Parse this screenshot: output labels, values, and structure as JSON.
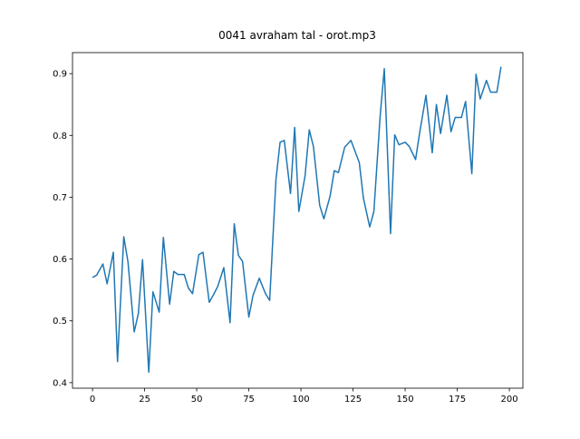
{
  "chart_data": {
    "type": "line",
    "title": "0041 avraham tal - orot.mp3",
    "x": [
      0,
      2,
      5,
      7,
      10,
      12,
      15,
      17,
      20,
      22,
      24,
      27,
      29,
      32,
      34,
      37,
      39,
      41,
      44,
      46,
      48,
      51,
      53,
      56,
      58,
      60,
      63,
      66,
      68,
      70,
      72,
      75,
      77,
      80,
      83,
      85,
      88,
      90,
      92,
      95,
      97,
      99,
      102,
      104,
      106,
      109,
      111,
      114,
      116,
      118,
      121,
      124,
      126,
      128,
      130,
      133,
      135,
      138,
      140,
      143,
      145,
      147,
      150,
      152,
      155,
      157,
      160,
      163,
      165,
      167,
      170,
      172,
      174,
      177,
      179,
      182,
      184,
      186,
      189,
      191,
      194,
      196
    ],
    "series": [
      {
        "color": "#1f77b4",
        "values": [
          0.57,
          0.574,
          0.592,
          0.56,
          0.611,
          0.434,
          0.636,
          0.596,
          0.482,
          0.512,
          0.599,
          0.417,
          0.547,
          0.514,
          0.635,
          0.527,
          0.58,
          0.575,
          0.575,
          0.553,
          0.544,
          0.607,
          0.611,
          0.53,
          0.542,
          0.555,
          0.586,
          0.497,
          0.657,
          0.606,
          0.596,
          0.506,
          0.541,
          0.569,
          0.544,
          0.533,
          0.728,
          0.789,
          0.792,
          0.706,
          0.813,
          0.677,
          0.735,
          0.809,
          0.782,
          0.687,
          0.665,
          0.702,
          0.743,
          0.74,
          0.781,
          0.792,
          0.774,
          0.756,
          0.698,
          0.652,
          0.677,
          0.831,
          0.908,
          0.641,
          0.801,
          0.785,
          0.789,
          0.782,
          0.761,
          0.805,
          0.865,
          0.772,
          0.85,
          0.803,
          0.865,
          0.806,
          0.829,
          0.829,
          0.855,
          0.738,
          0.899,
          0.859,
          0.889,
          0.87,
          0.87,
          0.911
        ]
      }
    ],
    "xlim": [
      -9.6,
      206.5
    ],
    "ylim": [
      0.391,
      0.934
    ],
    "xticks": [
      0,
      25,
      50,
      75,
      100,
      125,
      150,
      175,
      200
    ],
    "yticks": [
      0.4,
      0.5,
      0.6,
      0.7,
      0.8,
      0.9
    ]
  }
}
